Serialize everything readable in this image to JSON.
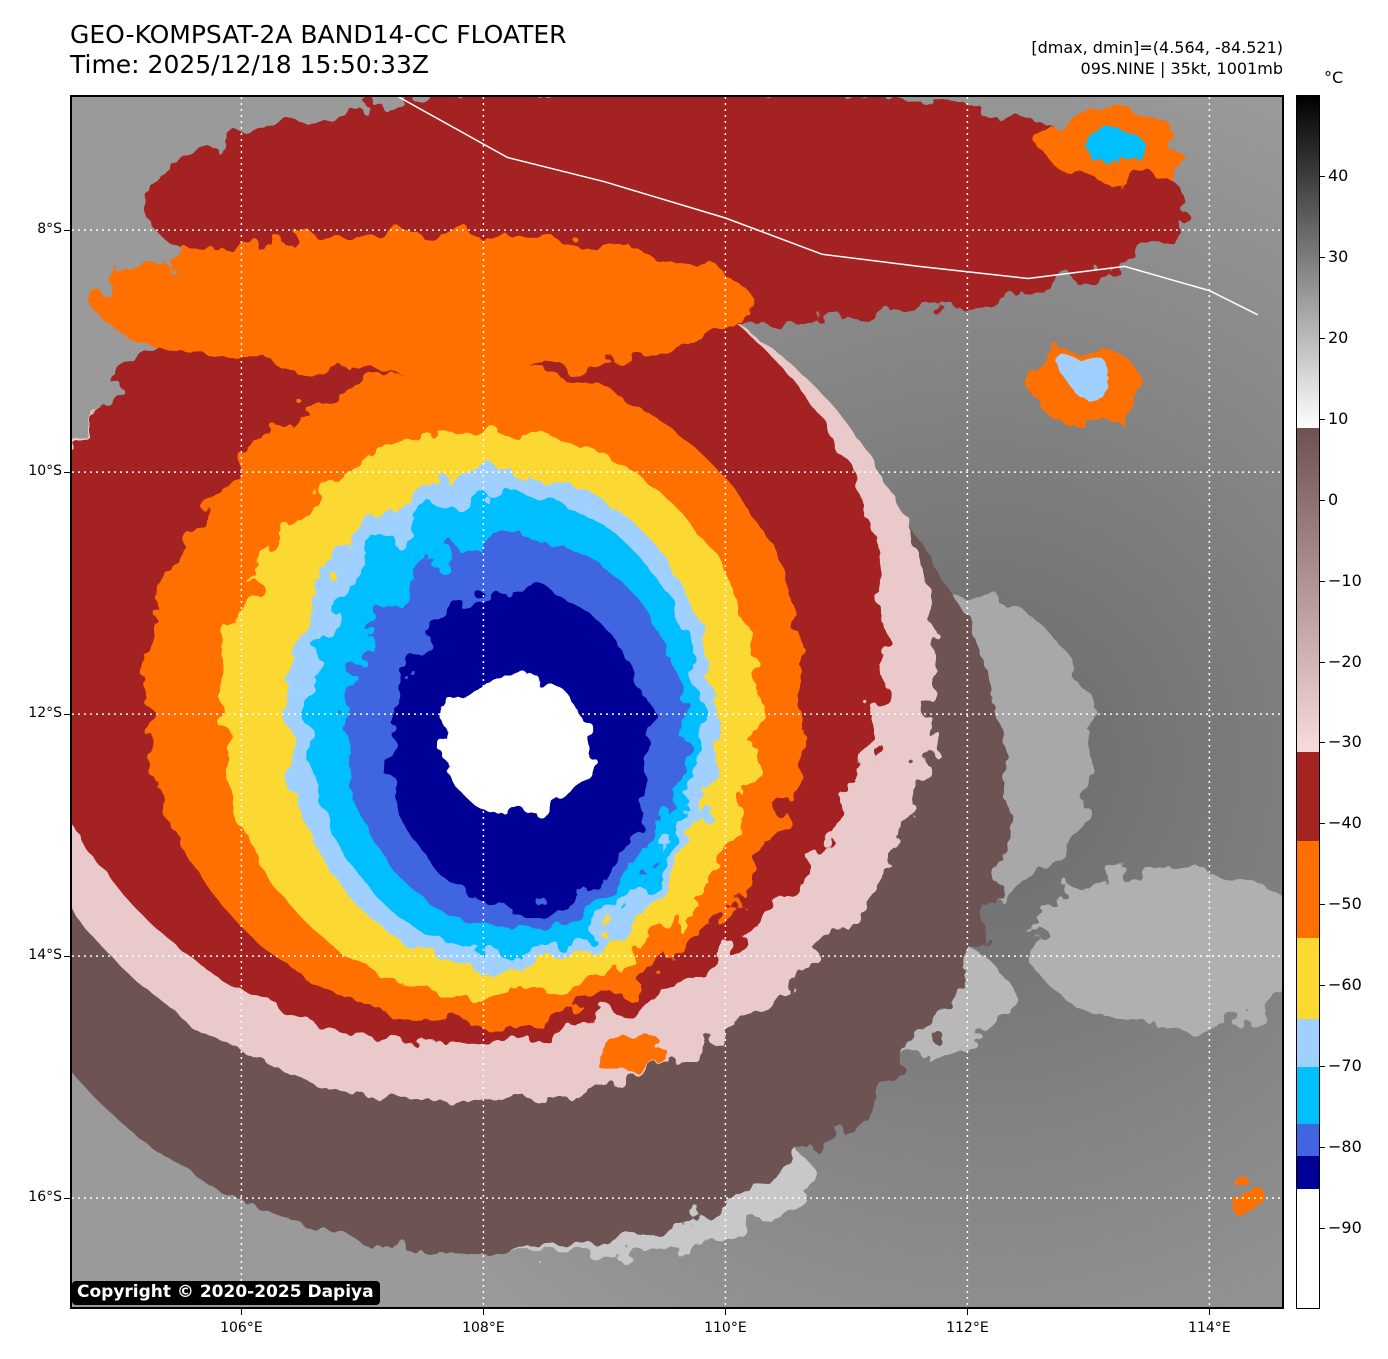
{
  "header": {
    "title_line1": "GEO-KOMPSAT-2A BAND14-CC FLOATER",
    "title_line2": "Time: 2025/12/18 15:50:33Z",
    "info_line1": "[dmax, dmin]=(4.564, -84.521)",
    "info_line2": "09S.NINE | 35kt, 1001mb"
  },
  "copyright": "Copyright © 2020-2025 Dapiya",
  "axes": {
    "lon_range": [
      104.6,
      114.6
    ],
    "lat_range": [
      -6.9,
      -16.9
    ],
    "lat_ticks": [
      {
        "value": -8,
        "label": "8°S"
      },
      {
        "value": -10,
        "label": "10°S"
      },
      {
        "value": -12,
        "label": "12°S"
      },
      {
        "value": -14,
        "label": "14°S"
      },
      {
        "value": -16,
        "label": "16°S"
      }
    ],
    "lon_ticks": [
      {
        "value": 106,
        "label": "106°E"
      },
      {
        "value": 108,
        "label": "108°E"
      },
      {
        "value": 110,
        "label": "110°E"
      },
      {
        "value": 112,
        "label": "112°E"
      },
      {
        "value": 114,
        "label": "114°E"
      }
    ]
  },
  "colorbar": {
    "unit": "°C",
    "range": [
      -100,
      50
    ],
    "ticks": [
      {
        "value": 40,
        "label": "40"
      },
      {
        "value": 30,
        "label": "30"
      },
      {
        "value": 20,
        "label": "20"
      },
      {
        "value": 10,
        "label": "10"
      },
      {
        "value": 0,
        "label": "0"
      },
      {
        "value": -10,
        "label": "−10"
      },
      {
        "value": -20,
        "label": "−20"
      },
      {
        "value": -30,
        "label": "−30"
      },
      {
        "value": -40,
        "label": "−40"
      },
      {
        "value": -50,
        "label": "−50"
      },
      {
        "value": -60,
        "label": "−60"
      },
      {
        "value": -70,
        "label": "−70"
      },
      {
        "value": -80,
        "label": "−80"
      },
      {
        "value": -90,
        "label": "−90"
      }
    ],
    "bands": [
      {
        "from": 9,
        "to": 50,
        "colors": [
          "#ffffff",
          "#000000"
        ]
      },
      {
        "from": -31,
        "to": 9,
        "colors": [
          "#f8dcdc",
          "#6e5252"
        ]
      },
      {
        "from": -42,
        "to": -31,
        "color": "#a52422"
      },
      {
        "from": -54,
        "to": -42,
        "color": "#ff6f00"
      },
      {
        "from": -64,
        "to": -54,
        "color": "#fcd931"
      },
      {
        "from": -70,
        "to": -64,
        "color": "#a0d0ff"
      },
      {
        "from": -77,
        "to": -70,
        "color": "#00bfff"
      },
      {
        "from": -81,
        "to": -77,
        "color": "#4165e0"
      },
      {
        "from": -85,
        "to": -81,
        "color": "#000096"
      },
      {
        "from": -100,
        "to": -85,
        "color": "#ffffff"
      }
    ]
  },
  "storm": {
    "name": "09S.NINE",
    "center_lon": 108.1,
    "center_lat": -12.0,
    "colors": {
      "outer_cold": "#a52422",
      "orange": "#ff6f00",
      "yellow": "#fcd931",
      "light_blue": "#a0d0ff",
      "cyan": "#00bfff",
      "blue": "#4165e0",
      "navy": "#000096",
      "core": "#ffffff",
      "warm_cloud": "#6e5252",
      "pink_cloud": "#e9c9c9",
      "ocean": "#7a7a7a"
    }
  }
}
